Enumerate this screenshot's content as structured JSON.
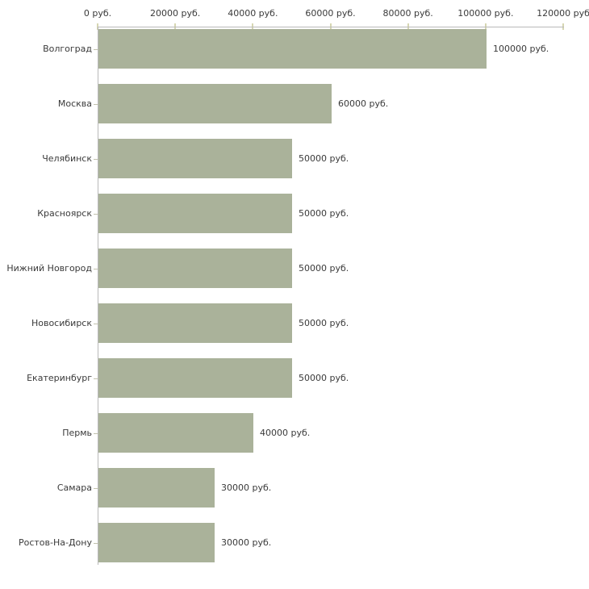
{
  "chart_data": {
    "type": "bar",
    "orientation": "horizontal",
    "title": "",
    "unit": "руб.",
    "categories": [
      "Волгоград",
      "Москва",
      "Челябинск",
      "Красноярск",
      "Нижний Новгород",
      "Новосибирск",
      "Екатеринбург",
      "Пермь",
      "Самара",
      "Ростов-На-Дону"
    ],
    "values": [
      100000,
      60000,
      50000,
      50000,
      50000,
      50000,
      50000,
      40000,
      30000,
      30000
    ],
    "value_labels": [
      "100000 руб.",
      "60000 руб.",
      "50000 руб.",
      "50000 руб.",
      "50000 руб.",
      "50000 руб.",
      "50000 руб.",
      "40000 руб.",
      "30000 руб.",
      "30000 руб."
    ],
    "x_axis": {
      "position": "top",
      "min": 0,
      "max": 120000,
      "ticks": [
        0,
        20000,
        40000,
        60000,
        80000,
        100000,
        120000
      ],
      "tick_labels": [
        "0 руб.",
        "20000 руб.",
        "40000 руб.",
        "60000 руб.",
        "80000 руб.",
        "100000 руб.",
        "120000 руб"
      ]
    },
    "grid": false,
    "legend": false,
    "colors": {
      "bar": "#aab29a",
      "axis_line": "#b9b9b9",
      "tick_mark": "#d6d6b2",
      "category_tick": "#c2c2ae",
      "text": "#3a3a3a",
      "background": "#ffffff"
    }
  }
}
